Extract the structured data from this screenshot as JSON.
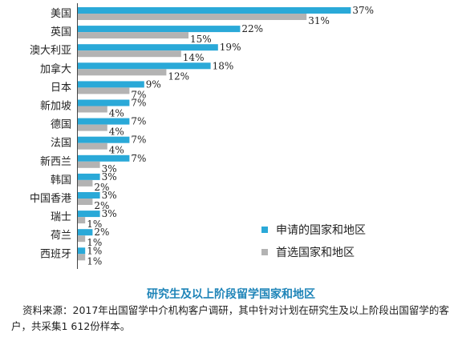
{
  "chart_data": {
    "type": "bar",
    "orientation": "horizontal",
    "title": "研究生及以上阶段留学国家和地区",
    "categories": [
      "美国",
      "英国",
      "澳大利亚",
      "加拿大",
      "日本",
      "新加坡",
      "德国",
      "法国",
      "新西兰",
      "韩国",
      "中国香港",
      "瑞士",
      "荷兰",
      "西班牙"
    ],
    "series": [
      {
        "name": "申请的国家和地区",
        "color": "#2aa9d8",
        "values": [
          37,
          22,
          19,
          18,
          9,
          7,
          7,
          7,
          7,
          3,
          3,
          3,
          2,
          1
        ],
        "labels": [
          "37%",
          "22%",
          "19%",
          "18%",
          "9%",
          "7%",
          "7%",
          "7%",
          "7%",
          "3%",
          "3%",
          "3%",
          "2%",
          "1%"
        ]
      },
      {
        "name": "首选国家和地区",
        "color": "#b3b3b3",
        "values": [
          31,
          15,
          14,
          12,
          7,
          4,
          4,
          4,
          3,
          2,
          2,
          1,
          1,
          1
        ],
        "labels": [
          "31%",
          "15%",
          "14%",
          "12%",
          "7%",
          "4%",
          "4%",
          "4%",
          "3%",
          "2%",
          "2%",
          "1%",
          "1%",
          "1%"
        ]
      }
    ],
    "legend_position": "right",
    "grid": false
  },
  "legend": {
    "applied_label": "申请的国家和地区",
    "preferred_label": "首选国家和地区"
  },
  "caption": {
    "title": "研究生及以上阶段留学国家和地区",
    "source": "资料来源：2017年出国留学中介机构客户调研，其中针对计划在研究生及以上阶段出国留学的客户，共采集1 612份样本。"
  }
}
